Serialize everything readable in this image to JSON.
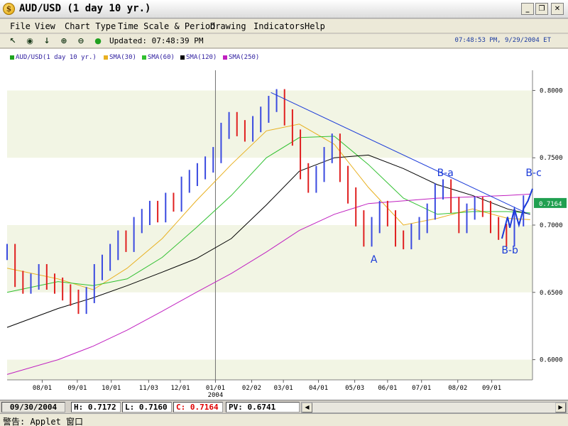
{
  "window": {
    "icon_letter": "$",
    "title": "AUD/USD (1 day  10 yr.)",
    "minimize": "_",
    "maximize": "❐",
    "close": "✕"
  },
  "menu": [
    "File",
    "View",
    "Chart Type",
    "Time Scale & Period",
    "Drawing",
    "Indicators",
    "Help"
  ],
  "toolbar": {
    "icons": [
      "pointer-icon",
      "target-icon",
      "arrow-down-icon",
      "zoom-in-icon",
      "zoom-out-icon",
      "status-dot-icon"
    ],
    "icon_glyphs": [
      "↖",
      "◉",
      "↓",
      "⊕",
      "⊖",
      "●"
    ],
    "updated": "Updated: 07:48:39 PM",
    "clock": "07:48:53 PM, 9/29/2004 ET"
  },
  "legend": [
    {
      "label": "AUD/USD(1 day  10 yr.)",
      "color": "#1fa31f"
    },
    {
      "label": "SMA(30)",
      "color": "#e8b020"
    },
    {
      "label": "SMA(60)",
      "color": "#30c030"
    },
    {
      "label": "SMA(120)",
      "color": "#000000"
    },
    {
      "label": "SMA(250)",
      "color": "#c020c0"
    }
  ],
  "chart_data": {
    "type": "line",
    "ylim": [
      0.585,
      0.815
    ],
    "y_ticks": [
      "0.8000",
      "0.7500",
      "0.7000",
      "0.6500",
      "0.6000"
    ],
    "y_tick_values": [
      0.8,
      0.75,
      0.7,
      0.65,
      0.6
    ],
    "x_ticks": [
      "08/01",
      "09/01",
      "10/01",
      "11/03",
      "12/01",
      "01/01",
      "02/02",
      "03/01",
      "04/01",
      "05/03",
      "06/01",
      "07/01",
      "08/02",
      "09/01"
    ],
    "x_tick_dates": [
      "2003-08-01",
      "2003-09-01",
      "2003-10-01",
      "2003-11-03",
      "2003-12-01",
      "2004-01-01",
      "2004-02-02",
      "2004-03-01",
      "2004-04-01",
      "2004-05-03",
      "2004-06-01",
      "2004-07-01",
      "2004-08-02",
      "2004-09-01"
    ],
    "x_start": "2003-07-01",
    "x_end": "2004-10-07",
    "year_label": "2004",
    "year_date": "2004-01-01",
    "last_value_label": "0.7164",
    "last_value": 0.7164,
    "series": [
      {
        "name": "AUD/USD(1 day  10 yr.)",
        "style": "ohlc",
        "dates": [
          "2003-07-01",
          "2003-07-08",
          "2003-07-15",
          "2003-07-22",
          "2003-07-29",
          "2003-08-05",
          "2003-08-12",
          "2003-08-19",
          "2003-08-26",
          "2003-09-02",
          "2003-09-09",
          "2003-09-16",
          "2003-09-23",
          "2003-09-30",
          "2003-10-07",
          "2003-10-14",
          "2003-10-21",
          "2003-10-28",
          "2003-11-04",
          "2003-11-11",
          "2003-11-18",
          "2003-11-25",
          "2003-12-02",
          "2003-12-09",
          "2003-12-16",
          "2003-12-23",
          "2003-12-30",
          "2004-01-06",
          "2004-01-13",
          "2004-01-20",
          "2004-01-27",
          "2004-02-03",
          "2004-02-10",
          "2004-02-17",
          "2004-02-24",
          "2004-03-02",
          "2004-03-09",
          "2004-03-16",
          "2004-03-23",
          "2004-03-30",
          "2004-04-06",
          "2004-04-13",
          "2004-04-20",
          "2004-04-27",
          "2004-05-04",
          "2004-05-11",
          "2004-05-18",
          "2004-05-25",
          "2004-06-01",
          "2004-06-08",
          "2004-06-15",
          "2004-06-22",
          "2004-06-29",
          "2004-07-06",
          "2004-07-13",
          "2004-07-20",
          "2004-07-27",
          "2004-08-03",
          "2004-08-10",
          "2004-08-17",
          "2004-08-24",
          "2004-08-31",
          "2004-09-07",
          "2004-09-14",
          "2004-09-21",
          "2004-09-29"
        ],
        "values": [
          0.68,
          0.66,
          0.655,
          0.658,
          0.665,
          0.658,
          0.655,
          0.65,
          0.646,
          0.64,
          0.648,
          0.665,
          0.672,
          0.68,
          0.69,
          0.686,
          0.7,
          0.706,
          0.712,
          0.708,
          0.718,
          0.716,
          0.73,
          0.735,
          0.74,
          0.745,
          0.752,
          0.77,
          0.778,
          0.772,
          0.768,
          0.775,
          0.782,
          0.79,
          0.795,
          0.78,
          0.765,
          0.74,
          0.73,
          0.738,
          0.752,
          0.762,
          0.738,
          0.722,
          0.705,
          0.69,
          0.7,
          0.712,
          0.705,
          0.69,
          0.688,
          0.695,
          0.7,
          0.71,
          0.725,
          0.728,
          0.715,
          0.7,
          0.71,
          0.715,
          0.712,
          0.7,
          0.695,
          0.69,
          0.705,
          0.716
        ]
      },
      {
        "name": "SMA(30)",
        "dates": [
          "2003-07-01",
          "2003-08-15",
          "2003-09-15",
          "2003-10-15",
          "2003-11-15",
          "2003-12-15",
          "2004-01-15",
          "2004-02-15",
          "2004-03-15",
          "2004-04-15",
          "2004-05-15",
          "2004-06-15",
          "2004-07-15",
          "2004-08-15",
          "2004-09-15",
          "2004-10-05"
        ],
        "values": [
          0.668,
          0.66,
          0.652,
          0.668,
          0.69,
          0.718,
          0.745,
          0.77,
          0.775,
          0.76,
          0.728,
          0.7,
          0.705,
          0.712,
          0.705,
          0.704
        ]
      },
      {
        "name": "SMA(60)",
        "dates": [
          "2003-07-01",
          "2003-08-15",
          "2003-09-15",
          "2003-10-15",
          "2003-11-15",
          "2003-12-15",
          "2004-01-15",
          "2004-02-15",
          "2004-03-15",
          "2004-04-15",
          "2004-05-15",
          "2004-06-15",
          "2004-07-15",
          "2004-08-15",
          "2004-09-15",
          "2004-10-05"
        ],
        "values": [
          0.65,
          0.658,
          0.655,
          0.66,
          0.676,
          0.698,
          0.722,
          0.75,
          0.765,
          0.766,
          0.745,
          0.72,
          0.708,
          0.71,
          0.71,
          0.709
        ]
      },
      {
        "name": "SMA(120)",
        "dates": [
          "2003-07-01",
          "2003-08-15",
          "2003-09-15",
          "2003-10-15",
          "2003-11-15",
          "2003-12-15",
          "2004-01-15",
          "2004-02-15",
          "2004-03-15",
          "2004-04-15",
          "2004-05-15",
          "2004-06-15",
          "2004-07-15",
          "2004-08-15",
          "2004-09-15",
          "2004-10-05"
        ],
        "values": [
          0.624,
          0.638,
          0.646,
          0.655,
          0.665,
          0.675,
          0.69,
          0.715,
          0.74,
          0.75,
          0.752,
          0.742,
          0.73,
          0.722,
          0.712,
          0.708
        ]
      },
      {
        "name": "SMA(250)",
        "dates": [
          "2003-07-01",
          "2003-08-15",
          "2003-09-15",
          "2003-10-15",
          "2003-11-15",
          "2003-12-15",
          "2004-01-15",
          "2004-02-15",
          "2004-03-15",
          "2004-04-15",
          "2004-05-15",
          "2004-06-15",
          "2004-07-15",
          "2004-08-15",
          "2004-09-15",
          "2004-10-05"
        ],
        "values": [
          0.589,
          0.6,
          0.61,
          0.622,
          0.636,
          0.65,
          0.664,
          0.68,
          0.696,
          0.708,
          0.716,
          0.718,
          0.72,
          0.721,
          0.722,
          0.723
        ]
      }
    ],
    "drawings": [
      {
        "kind": "trendline",
        "color": "#1a3ad8",
        "points": [
          {
            "date": "2004-02-19",
            "value": 0.7985
          },
          {
            "date": "2004-10-04",
            "value": 0.708
          }
        ]
      },
      {
        "kind": "wave",
        "color": "#1a3ad8",
        "points": [
          {
            "date": "2004-09-10",
            "value": 0.69
          },
          {
            "date": "2004-09-15",
            "value": 0.706
          },
          {
            "date": "2004-09-17",
            "value": 0.698
          },
          {
            "date": "2004-09-21",
            "value": 0.712
          },
          {
            "date": "2004-09-25",
            "value": 0.7
          },
          {
            "date": "2004-09-29",
            "value": 0.712
          },
          {
            "date": "2004-10-03",
            "value": 0.718
          },
          {
            "date": "2004-10-07",
            "value": 0.727
          }
        ]
      }
    ],
    "annotations": [
      {
        "text": "A",
        "date": "2004-05-20",
        "value": 0.672
      },
      {
        "text": "B-a",
        "date": "2004-07-22",
        "value": 0.7365
      },
      {
        "text": "B-b",
        "date": "2004-09-17",
        "value": 0.679
      },
      {
        "text": "B-c",
        "date": "2004-10-08",
        "value": 0.7365
      }
    ]
  },
  "statusbar": {
    "date": "09/30/2004",
    "high": "H: 0.7172",
    "low": "L: 0.7160",
    "close": "C: 0.7164",
    "pv": "PV: 0.6741",
    "scroll_left": "◀",
    "scroll_right": "▶"
  },
  "warning": "警告: Applet 窗口"
}
